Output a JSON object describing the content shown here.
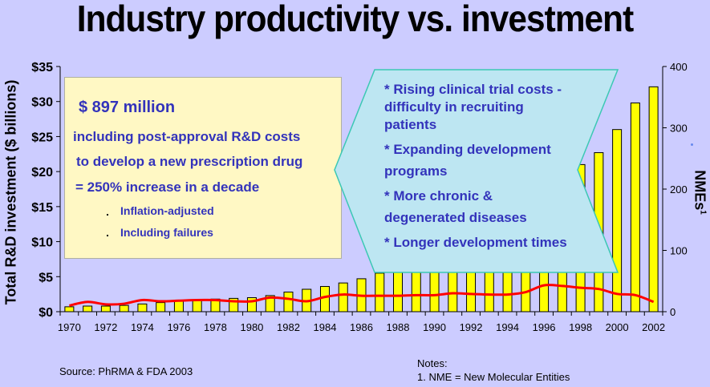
{
  "title": "Industry productivity vs. investment",
  "left_box": {
    "headline": "$ 897 million",
    "lines": [
      "including post-approval R&D costs",
      "to develop a new prescription drug",
      "= 250% increase in a decade"
    ],
    "bullets": [
      "Inflation-adjusted",
      "Including failures"
    ]
  },
  "callout": {
    "lines": [
      "* Rising clinical trial costs -",
      "difficulty in recruiting",
      "patients",
      "* Expanding development",
      "programs",
      "* More chronic &",
      "degenerated diseases",
      "* Longer development times"
    ]
  },
  "footer": {
    "source": "Source: PhRMA & FDA 2003",
    "notes_title": "Notes:",
    "note_1": "1. NME = New Molecular Entities"
  },
  "colors": {
    "background": "#ccccff",
    "bar_fill": "#ffff00",
    "line": "#ff0000",
    "text_accent": "#3333bb",
    "left_box_fill": "#fff8c4",
    "callout_fill": "#bde6f2",
    "callout_stroke": "#3cc8b4"
  },
  "chart_data": {
    "type": "bar",
    "title": "Industry productivity vs. investment",
    "xlabel": "",
    "ylabel": "Total R&D investment ($ billions)",
    "y2label": "NMEs",
    "y2label_superscript": "1",
    "ylim": [
      0,
      35
    ],
    "y2lim": [
      0,
      400
    ],
    "yticks": [
      "$0",
      "$5",
      "$10",
      "$15",
      "$20",
      "$25",
      "$30",
      "$35"
    ],
    "y2ticks": [
      "0",
      "100",
      "200",
      "300",
      "400"
    ],
    "x_tick_labels": [
      "1970",
      "1972",
      "1974",
      "1976",
      "1978",
      "1980",
      "1982",
      "1984",
      "1986",
      "1988",
      "1990",
      "1992",
      "1994",
      "1996",
      "1998",
      "2000",
      "2002"
    ],
    "categories": [
      1970,
      1971,
      1972,
      1973,
      1974,
      1975,
      1976,
      1977,
      1978,
      1979,
      1980,
      1981,
      1982,
      1983,
      1984,
      1985,
      1986,
      1987,
      1988,
      1989,
      1990,
      1991,
      1992,
      1993,
      1994,
      1995,
      1996,
      1997,
      1998,
      1999,
      2000,
      2001,
      2002
    ],
    "series": [
      {
        "name": "Total R&D investment ($ billions)",
        "type": "bar",
        "axis": "left",
        "values": [
          0.7,
          0.8,
          0.8,
          0.9,
          1.1,
          1.3,
          1.5,
          1.6,
          1.8,
          1.9,
          2.0,
          2.3,
          2.8,
          3.2,
          3.6,
          4.1,
          4.7,
          5.5,
          6.5,
          7.3,
          8.4,
          9.7,
          11.5,
          12.7,
          13.4,
          15.2,
          16.9,
          19.0,
          21.0,
          22.7,
          26.0,
          29.8,
          32.1
        ]
      },
      {
        "name": "NMEs",
        "type": "line",
        "axis": "right",
        "values": [
          10,
          16,
          12,
          13,
          19,
          17,
          18,
          19,
          19,
          17,
          17,
          23,
          21,
          17,
          24,
          28,
          26,
          26,
          26,
          27,
          27,
          30,
          29,
          28,
          28,
          32,
          43,
          42,
          39,
          37,
          29,
          27,
          16
        ]
      }
    ],
    "grid": false,
    "legend": "none"
  }
}
